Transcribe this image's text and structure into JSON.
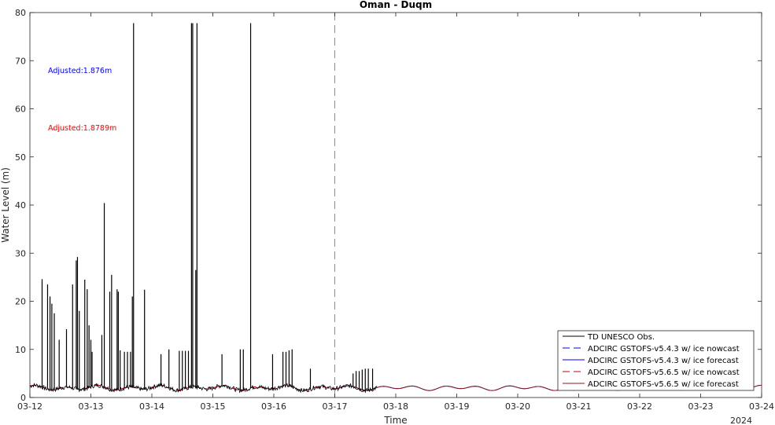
{
  "chart_data": {
    "type": "line",
    "title": "Oman - Duqm",
    "xlabel": "Time",
    "ylabel": "Water Level (m)",
    "year_label": "2024",
    "x_ticks": [
      "03-12",
      "03-13",
      "03-14",
      "03-15",
      "03-16",
      "03-17",
      "03-18",
      "03-19",
      "03-20",
      "03-21",
      "03-22",
      "03-23",
      "03-24"
    ],
    "y_ticks": [
      "0",
      "10",
      "20",
      "30",
      "40",
      "50",
      "60",
      "70",
      "80"
    ],
    "ylim": [
      0,
      80
    ],
    "xlim_days": [
      12,
      24
    ],
    "nowcast_forecast_boundary": "03-17",
    "grid": false,
    "legend_position": "bottom-right",
    "annotations": [
      {
        "text": "Adjusted:1.876m",
        "color": "#0000ff"
      },
      {
        "text": "Adjusted:1.8789m",
        "color": "#ff0000"
      }
    ],
    "series": [
      {
        "name": "TD UNESCO Obs.",
        "color": "#000000",
        "style": "solid"
      },
      {
        "name": "ADCIRC GSTOFS-v5.4.3 w/ ice nowcast",
        "color": "#0000ff",
        "style": "dashed"
      },
      {
        "name": "ADCIRC GSTOFS-v5.4.3 w/ ice forecast",
        "color": "#0000ff",
        "style": "solid"
      },
      {
        "name": "ADCIRC GSTOFS-v5.6.5 w/ ice nowcast",
        "color": "#cc0000",
        "style": "dashed"
      },
      {
        "name": "ADCIRC GSTOFS-v5.6.5 w/ ice forecast",
        "color": "#8b1a1a",
        "style": "solid"
      }
    ],
    "obs_baseline_m": 2.0,
    "obs_end_day": 17.7,
    "obs_spikes": [
      {
        "x": 12.2,
        "y": 24.6
      },
      {
        "x": 12.29,
        "y": 23.5
      },
      {
        "x": 12.33,
        "y": 21.0
      },
      {
        "x": 12.36,
        "y": 19.5
      },
      {
        "x": 12.4,
        "y": 17.5
      },
      {
        "x": 12.48,
        "y": 12.0
      },
      {
        "x": 12.6,
        "y": 14.2
      },
      {
        "x": 12.7,
        "y": 23.5
      },
      {
        "x": 12.76,
        "y": 28.5
      },
      {
        "x": 12.78,
        "y": 29.2
      },
      {
        "x": 12.81,
        "y": 18.0
      },
      {
        "x": 12.9,
        "y": 24.5
      },
      {
        "x": 12.94,
        "y": 22.5
      },
      {
        "x": 12.97,
        "y": 15.0
      },
      {
        "x": 13.0,
        "y": 12.0
      },
      {
        "x": 13.02,
        "y": 9.5
      },
      {
        "x": 13.18,
        "y": 13.0
      },
      {
        "x": 13.22,
        "y": 40.4
      },
      {
        "x": 13.31,
        "y": 22.0
      },
      {
        "x": 13.34,
        "y": 25.5
      },
      {
        "x": 13.43,
        "y": 22.5
      },
      {
        "x": 13.45,
        "y": 22.0
      },
      {
        "x": 13.48,
        "y": 9.8
      },
      {
        "x": 13.55,
        "y": 9.5
      },
      {
        "x": 13.6,
        "y": 9.5
      },
      {
        "x": 13.65,
        "y": 9.5
      },
      {
        "x": 13.68,
        "y": 21.0
      },
      {
        "x": 13.7,
        "y": 77.8
      },
      {
        "x": 13.88,
        "y": 22.4
      },
      {
        "x": 14.15,
        "y": 9.0
      },
      {
        "x": 14.28,
        "y": 10.0
      },
      {
        "x": 14.45,
        "y": 9.7
      },
      {
        "x": 14.5,
        "y": 9.7
      },
      {
        "x": 14.55,
        "y": 9.7
      },
      {
        "x": 14.6,
        "y": 9.7
      },
      {
        "x": 14.65,
        "y": 77.8
      },
      {
        "x": 14.67,
        "y": 77.8
      },
      {
        "x": 14.72,
        "y": 26.5
      },
      {
        "x": 14.74,
        "y": 77.8
      },
      {
        "x": 15.15,
        "y": 9.0
      },
      {
        "x": 15.45,
        "y": 10.0
      },
      {
        "x": 15.5,
        "y": 10.0
      },
      {
        "x": 15.62,
        "y": 77.8
      },
      {
        "x": 15.98,
        "y": 9.0
      },
      {
        "x": 16.15,
        "y": 9.5
      },
      {
        "x": 16.2,
        "y": 9.5
      },
      {
        "x": 16.25,
        "y": 9.8
      },
      {
        "x": 16.3,
        "y": 10.0
      },
      {
        "x": 16.6,
        "y": 6.0
      },
      {
        "x": 17.3,
        "y": 5.0
      },
      {
        "x": 17.35,
        "y": 5.5
      },
      {
        "x": 17.4,
        "y": 5.5
      },
      {
        "x": 17.45,
        "y": 5.8
      },
      {
        "x": 17.5,
        "y": 6.0
      },
      {
        "x": 17.55,
        "y": 6.0
      },
      {
        "x": 17.62,
        "y": 6.0
      }
    ]
  }
}
